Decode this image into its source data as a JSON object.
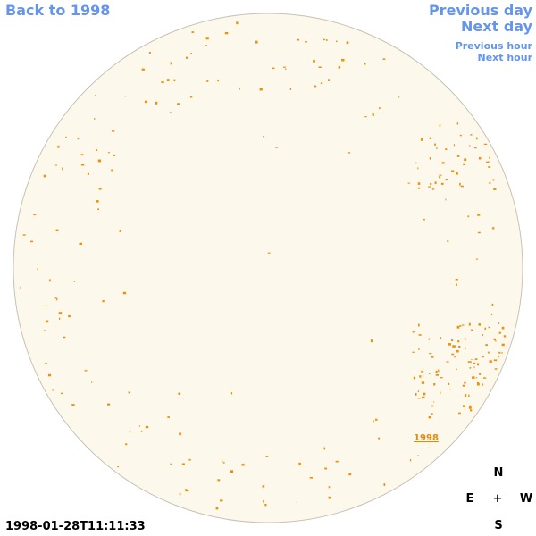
{
  "nav": {
    "back": "Back to 1998",
    "previous_day": "Previous day",
    "next_day": "Next day",
    "previous_hour": "Previous hour",
    "next_hour": "Next hour"
  },
  "timestamp": "1998-01-28T11:11:33",
  "disk_label": "1998",
  "compass": {
    "north": "N",
    "east": "E",
    "center": "+",
    "west": "W",
    "south": "S"
  }
}
